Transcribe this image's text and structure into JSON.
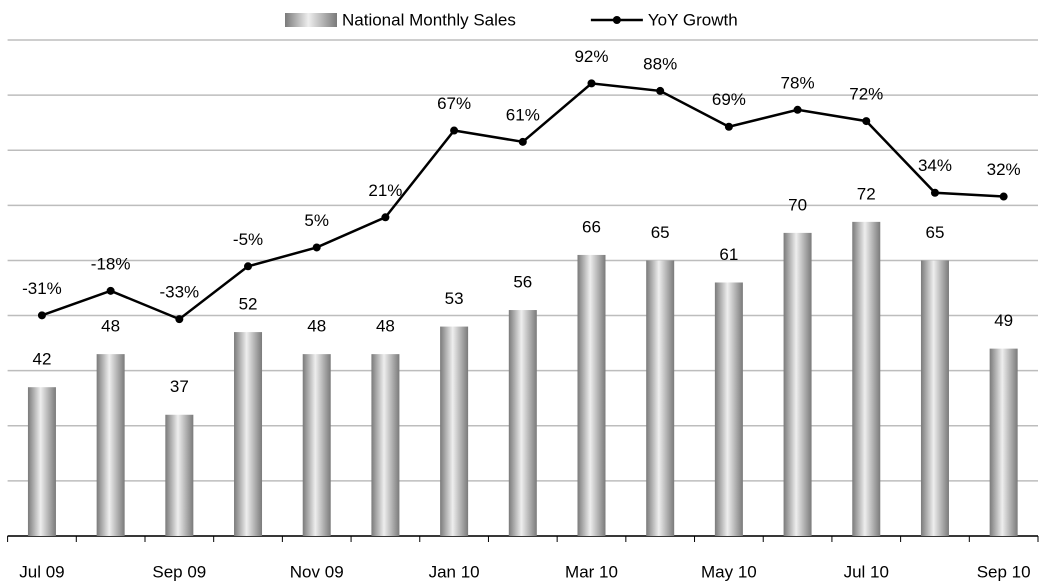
{
  "chart_data": {
    "type": "bar",
    "categories": [
      "Jul 09",
      null,
      "Sep 09",
      null,
      "Nov 09",
      null,
      "Jan 10",
      null,
      "Mar 10",
      null,
      "May 10",
      null,
      "Jul 10",
      null,
      "Sep 10"
    ],
    "series": [
      {
        "name": "National Monthly Sales",
        "type": "bar",
        "color": "#7a7a7a",
        "values": [
          42,
          48,
          37,
          52,
          48,
          48,
          53,
          56,
          66,
          65,
          61,
          70,
          72,
          65,
          49
        ]
      },
      {
        "name": "YoY Growth",
        "type": "line",
        "axis": "y2",
        "color": "#000000",
        "values": [
          -31,
          -18,
          -33,
          -5,
          5,
          21,
          67,
          61,
          92,
          88,
          69,
          78,
          72,
          34,
          32
        ],
        "value_labels": [
          "-31%",
          "-18%",
          "-33%",
          "-5%",
          "5%",
          "21%",
          "67%",
          "61%",
          "92%",
          "88%",
          "69%",
          "78%",
          "72%",
          "34%",
          "32%"
        ]
      }
    ],
    "ylim": [
      15,
      105
    ],
    "yticks": [
      15,
      25,
      35,
      45,
      55,
      65,
      75,
      85,
      95,
      105
    ],
    "y2lim": [
      -148,
      115
    ],
    "grid": true,
    "legend": "top"
  }
}
